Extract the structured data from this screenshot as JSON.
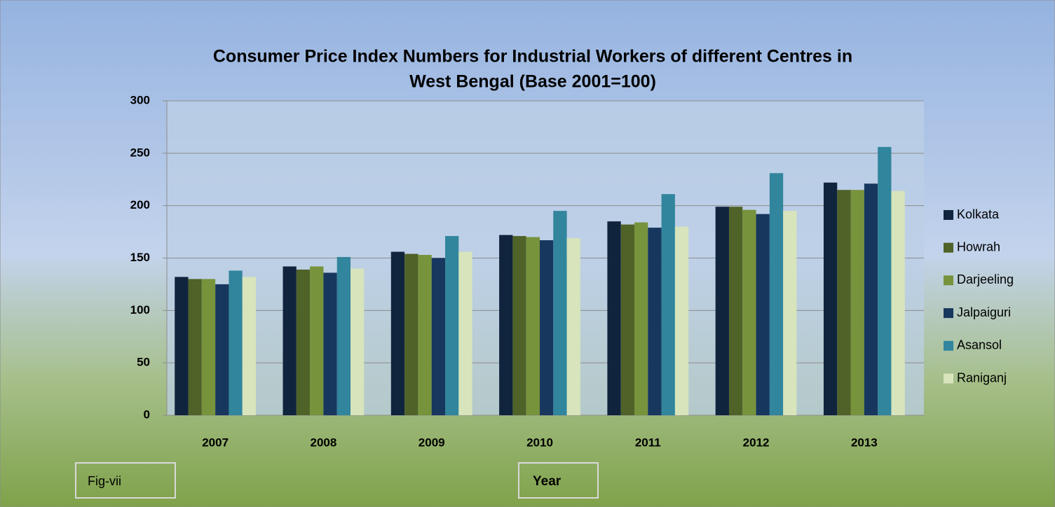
{
  "chart_data": {
    "type": "bar",
    "title": [
      "Consumer Price Index Numbers for Industrial Workers of different Centres   in",
      "West  Bengal (Base 2001=100)"
    ],
    "x_label": "Year",
    "annotation": "Fig-vii",
    "categories": [
      "2007",
      "2008",
      "2009",
      "2010",
      "2011",
      "2012",
      "2013"
    ],
    "series": [
      {
        "name": "Kolkata",
        "color": "#10243e",
        "values": [
          132,
          142,
          156,
          172,
          185,
          199,
          222
        ]
      },
      {
        "name": "Howrah",
        "color": "#4f6228",
        "values": [
          130,
          139,
          154,
          171,
          182,
          199,
          215
        ]
      },
      {
        "name": "Darjeeling",
        "color": "#77933c",
        "values": [
          130,
          142,
          153,
          170,
          184,
          196,
          215
        ]
      },
      {
        "name": "Jalpaiguri",
        "color": "#17375e",
        "values": [
          125,
          136,
          150,
          167,
          179,
          192,
          221
        ]
      },
      {
        "name": "Asansol",
        "color": "#31859c",
        "values": [
          138,
          151,
          171,
          195,
          211,
          231,
          256
        ]
      },
      {
        "name": "Raniganj",
        "color": "#d7e4bc",
        "values": [
          132,
          140,
          156,
          169,
          180,
          195,
          214
        ]
      }
    ],
    "ylim": [
      0,
      300
    ],
    "yticks": [
      0,
      50,
      100,
      150,
      200,
      250,
      300
    ],
    "grid": true,
    "legend": "right"
  }
}
